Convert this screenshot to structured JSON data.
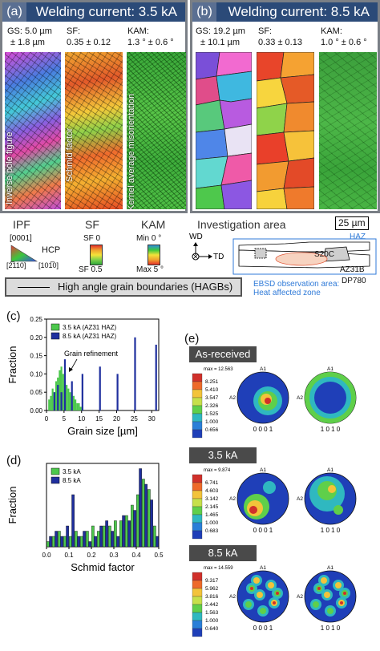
{
  "panel_a": {
    "letter": "(a)",
    "title": "Welding current: 3.5 kA",
    "gs": "GS: 5.0 µm",
    "gs_err": "± 1.8 µm",
    "sf": "SF:",
    "sf_val": "0.35 ± 0.12",
    "kam": "KAM:",
    "kam_val": "1.3 ° ± 0.6 °",
    "vert_ipf": "Inverse pole figure",
    "vert_sf": "Schmid factor",
    "vert_kam": "Kernel average misorientation"
  },
  "panel_b": {
    "letter": "(b)",
    "title": "Welding current: 8.5 kA",
    "gs": "GS: 19.2 µm",
    "gs_err": "± 10.1 µm",
    "sf": "SF:",
    "sf_val": "0.33 ± 0.13",
    "kam": "KAM:",
    "kam_val": "1.0 ° ± 0.6 °"
  },
  "legend": {
    "ipf": "IPF",
    "ipf_0001": "[0001]",
    "hcp": "HCP",
    "ipf_2110": "[2̅110]",
    "ipf_1010": "[101̅0]",
    "sf": "SF",
    "sf0": "SF 0",
    "sf05": "SF 0.5",
    "kam": "KAM",
    "kam_min": "Min 0 °",
    "kam_max": "Max 5 °",
    "inv": "Investigation area",
    "scale": "25 µm",
    "wd": "WD",
    "td": "TD",
    "haz": "HAZ",
    "s20c": "S20C",
    "az31b": "AZ31B",
    "dp780": "DP780",
    "ebsd1": "EBSD observation area:",
    "ebsd2": "Heat affected zone",
    "hagb": "High angle grain boundaries (HAGBs)"
  },
  "panel_c": {
    "letter": "(c)",
    "ylabel": "Fraction",
    "xlabel": "Grain size [µm]",
    "annotation": "Grain refinement"
  },
  "panel_d": {
    "letter": "(d)",
    "ylabel": "Fraction",
    "xlabel": "Schmid factor"
  },
  "panel_e": {
    "letter": "(e)",
    "groups": [
      {
        "title": "As-received",
        "max": "max = 12.563",
        "levels": [
          "8.251",
          "5.410",
          "3.547",
          "2.326",
          "1.525",
          "1.000",
          "0.656"
        ],
        "pf1": "0 0 0 1",
        "pf2": "1 0 1 0",
        "a1": "A1",
        "a2": "A2"
      },
      {
        "title": "3.5 kA",
        "max": "max = 9.874",
        "levels": [
          "6.741",
          "4.603",
          "3.142",
          "2.145",
          "1.465",
          "1.000",
          "0.683"
        ],
        "pf1": "0 0 0 1",
        "pf2": "1 0 1 0",
        "a1": "A1",
        "a2": "A2"
      },
      {
        "title": "8.5 kA",
        "max": "max = 14.559",
        "levels": [
          "9.317",
          "5.962",
          "3.816",
          "2.442",
          "1.563",
          "1.000",
          "0.640"
        ],
        "pf1": "0 0 0 1",
        "pf2": "1 0 1 0",
        "a1": "A1",
        "a2": "A2"
      }
    ]
  },
  "chart_data": [
    {
      "type": "bar",
      "xlabel": "Grain size [µm]",
      "ylabel": "Fraction",
      "xlim": [
        0,
        32
      ],
      "ylim": [
        0,
        0.25
      ],
      "xticks": [
        0,
        5,
        10,
        15,
        20,
        25,
        30
      ],
      "yticks": [
        0.0,
        0.05,
        0.1,
        0.15,
        0.2,
        0.25
      ],
      "legend_position": "top-left",
      "series": [
        {
          "name": "3.5 kA (AZ31 HAZ)",
          "color": "#4cc84c",
          "x": [
            0.5,
            1.0,
            1.5,
            2.0,
            2.5,
            3.0,
            3.5,
            4.0,
            4.5,
            5.0,
            5.5,
            6.0,
            6.5,
            7.0,
            7.5,
            8.0,
            8.5,
            9.0,
            9.5,
            10.0
          ],
          "values": [
            0.03,
            0.04,
            0.06,
            0.05,
            0.08,
            0.09,
            0.11,
            0.12,
            0.1,
            0.08,
            0.07,
            0.06,
            0.05,
            0.04,
            0.04,
            0.03,
            0.02,
            0.02,
            0.01,
            0.01
          ]
        },
        {
          "name": "8.5 kA (AZ31 HAZ)",
          "color": "#1f2f9e",
          "x": [
            2.0,
            3.0,
            4.0,
            5.0,
            7.0,
            10.0,
            15.0,
            20.0,
            25.0,
            31.0
          ],
          "values": [
            0.05,
            0.07,
            0.05,
            0.14,
            0.08,
            0.1,
            0.12,
            0.1,
            0.2,
            0.18
          ]
        }
      ]
    },
    {
      "type": "bar",
      "xlabel": "Schmid factor",
      "ylabel": "Fraction",
      "xlim": [
        0,
        0.5
      ],
      "ylim": [
        0,
        0.16
      ],
      "xticks": [
        0.0,
        0.1,
        0.2,
        0.3,
        0.4,
        0.5
      ],
      "legend_position": "top-left",
      "series": [
        {
          "name": "3.5 kA",
          "color": "#4cc84c",
          "x": [
            0.0125,
            0.0375,
            0.0625,
            0.0875,
            0.1125,
            0.1375,
            0.1625,
            0.1875,
            0.2125,
            0.2375,
            0.2625,
            0.2875,
            0.3125,
            0.3375,
            0.3625,
            0.3875,
            0.4125,
            0.4375,
            0.4625,
            0.4875
          ],
          "values": [
            0.01,
            0.02,
            0.03,
            0.02,
            0.02,
            0.03,
            0.02,
            0.03,
            0.04,
            0.03,
            0.04,
            0.04,
            0.05,
            0.05,
            0.06,
            0.08,
            0.1,
            0.13,
            0.11,
            0.04
          ]
        },
        {
          "name": "8.5 kA",
          "color": "#1f2f9e",
          "x": [
            0.0125,
            0.0375,
            0.0625,
            0.0875,
            0.1125,
            0.1375,
            0.1625,
            0.1875,
            0.2125,
            0.2375,
            0.2625,
            0.2875,
            0.3125,
            0.3375,
            0.3625,
            0.3875,
            0.4125,
            0.4375,
            0.4625,
            0.4875
          ],
          "values": [
            0.02,
            0.03,
            0.02,
            0.04,
            0.1,
            0.02,
            0.03,
            0.01,
            0.02,
            0.04,
            0.05,
            0.03,
            0.02,
            0.06,
            0.05,
            0.07,
            0.15,
            0.12,
            0.09,
            0.02
          ]
        }
      ]
    }
  ]
}
